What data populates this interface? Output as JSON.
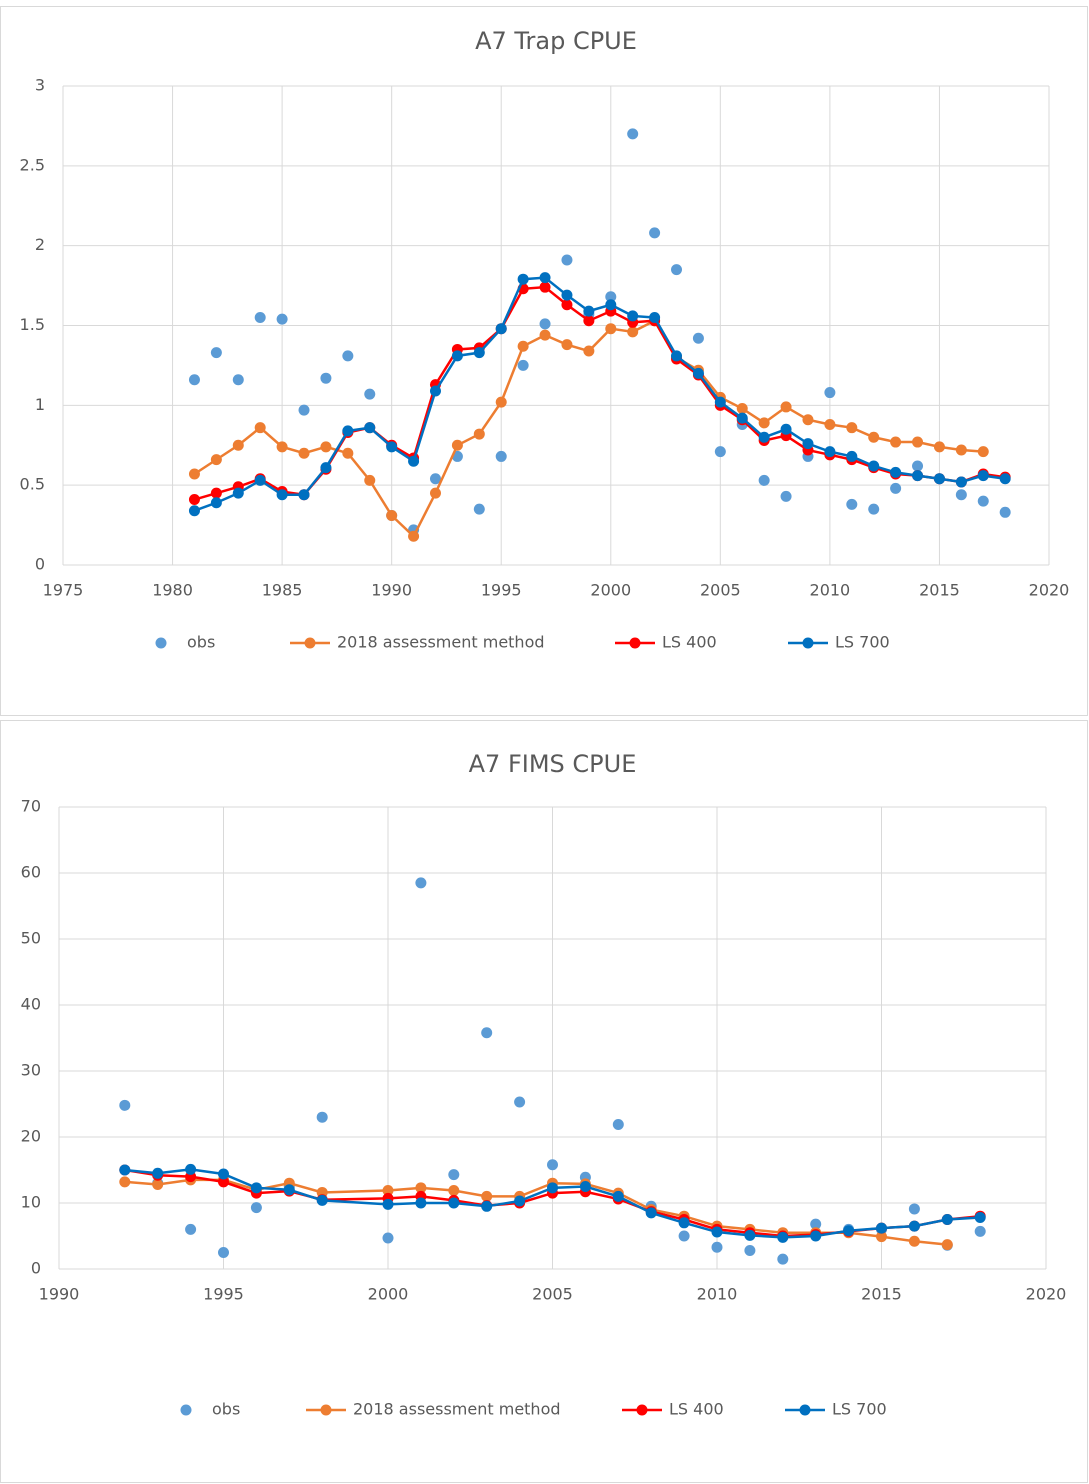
{
  "chart_data": [
    {
      "type": "line",
      "title": "A7 Trap CPUE",
      "xlim": [
        1975,
        2020
      ],
      "xticks": [
        1975,
        1980,
        1985,
        1990,
        1995,
        2000,
        2005,
        2010,
        2015,
        2020
      ],
      "ylim": [
        0,
        3
      ],
      "yticks": [
        0,
        0.5,
        1,
        1.5,
        2,
        2.5,
        3
      ],
      "grid": true,
      "legend": "bottom",
      "series": [
        {
          "name": "obs",
          "color": "#5b9bd5",
          "line": false,
          "x": [
            1981,
            1982,
            1983,
            1984,
            1985,
            1986,
            1987,
            1988,
            1989,
            1990,
            1991,
            1992,
            1993,
            1994,
            1995,
            1996,
            1997,
            1998,
            1999,
            2000,
            2001,
            2002,
            2003,
            2004,
            2005,
            2006,
            2007,
            2008,
            2009,
            2010,
            2011,
            2012,
            2013,
            2014,
            2015,
            2016,
            2017,
            2018
          ],
          "values": [
            1.16,
            1.33,
            1.16,
            1.55,
            1.54,
            0.97,
            1.17,
            1.31,
            1.07,
            0.31,
            0.22,
            0.54,
            0.68,
            0.35,
            0.68,
            1.25,
            1.51,
            1.91,
            1.57,
            1.68,
            2.7,
            2.08,
            1.85,
            1.42,
            0.71,
            0.88,
            0.53,
            0.43,
            0.68,
            1.08,
            0.38,
            0.35,
            0.48,
            0.62,
            0.54,
            0.44,
            0.4,
            0.33
          ]
        },
        {
          "name": "2018 assessment method",
          "color": "#ed7d31",
          "line": true,
          "x": [
            1981,
            1982,
            1983,
            1984,
            1985,
            1986,
            1987,
            1988,
            1989,
            1990,
            1991,
            1992,
            1993,
            1994,
            1995,
            1996,
            1997,
            1998,
            1999,
            2000,
            2001,
            2002,
            2003,
            2004,
            2005,
            2006,
            2007,
            2008,
            2009,
            2010,
            2011,
            2012,
            2013,
            2014,
            2015,
            2016,
            2017
          ],
          "values": [
            0.57,
            0.66,
            0.75,
            0.86,
            0.74,
            0.7,
            0.74,
            0.7,
            0.53,
            0.31,
            0.18,
            0.45,
            0.75,
            0.82,
            1.02,
            1.37,
            1.44,
            1.38,
            1.34,
            1.48,
            1.46,
            1.53,
            1.3,
            1.22,
            1.05,
            0.98,
            0.89,
            0.99,
            0.91,
            0.88,
            0.86,
            0.8,
            0.77,
            0.77,
            0.74,
            0.72,
            0.71
          ]
        },
        {
          "name": "LS 400",
          "color": "#ff0000",
          "line": true,
          "x": [
            1981,
            1982,
            1983,
            1984,
            1985,
            1986,
            1987,
            1988,
            1989,
            1990,
            1991,
            1992,
            1993,
            1994,
            1995,
            1996,
            1997,
            1998,
            1999,
            2000,
            2001,
            2002,
            2003,
            2004,
            2005,
            2006,
            2007,
            2008,
            2009,
            2010,
            2011,
            2012,
            2013,
            2014,
            2015,
            2016,
            2017,
            2018
          ],
          "values": [
            0.41,
            0.45,
            0.49,
            0.54,
            0.46,
            0.44,
            0.6,
            0.83,
            0.86,
            0.75,
            0.67,
            1.13,
            1.35,
            1.36,
            1.48,
            1.73,
            1.74,
            1.63,
            1.53,
            1.59,
            1.52,
            1.53,
            1.29,
            1.19,
            1.0,
            0.91,
            0.78,
            0.81,
            0.72,
            0.69,
            0.66,
            0.61,
            0.57,
            0.56,
            0.54,
            0.52,
            0.57,
            0.55
          ]
        },
        {
          "name": "LS 700",
          "color": "#0070c0",
          "line": true,
          "x": [
            1981,
            1982,
            1983,
            1984,
            1985,
            1986,
            1987,
            1988,
            1989,
            1990,
            1991,
            1992,
            1993,
            1994,
            1995,
            1996,
            1997,
            1998,
            1999,
            2000,
            2001,
            2002,
            2003,
            2004,
            2005,
            2006,
            2007,
            2008,
            2009,
            2010,
            2011,
            2012,
            2013,
            2014,
            2015,
            2016,
            2017,
            2018
          ],
          "values": [
            0.34,
            0.39,
            0.45,
            0.53,
            0.44,
            0.44,
            0.61,
            0.84,
            0.86,
            0.74,
            0.65,
            1.09,
            1.31,
            1.33,
            1.48,
            1.79,
            1.8,
            1.69,
            1.59,
            1.63,
            1.56,
            1.55,
            1.31,
            1.2,
            1.02,
            0.92,
            0.8,
            0.85,
            0.76,
            0.71,
            0.68,
            0.62,
            0.58,
            0.56,
            0.54,
            0.52,
            0.56,
            0.54
          ]
        }
      ]
    },
    {
      "type": "line",
      "title": "A7 FIMS CPUE",
      "xlim": [
        1990,
        2020
      ],
      "xticks": [
        1990,
        1995,
        2000,
        2005,
        2010,
        2015,
        2020
      ],
      "ylim": [
        0,
        70
      ],
      "yticks": [
        0,
        10,
        20,
        30,
        40,
        50,
        60,
        70
      ],
      "grid": true,
      "legend": "bottom",
      "series": [
        {
          "name": "obs",
          "color": "#5b9bd5",
          "line": false,
          "x": [
            1992,
            1993,
            1994,
            1995,
            1996,
            1997,
            1998,
            2000,
            2001,
            2002,
            2003,
            2004,
            2005,
            2006,
            2007,
            2008,
            2009,
            2010,
            2011,
            2012,
            2013,
            2014,
            2015,
            2016,
            2017,
            2018
          ],
          "values": [
            24.8,
            13.0,
            6.0,
            2.5,
            9.3,
            12.5,
            23.0,
            4.7,
            58.5,
            14.3,
            35.8,
            25.3,
            15.8,
            13.9,
            21.9,
            9.5,
            5.0,
            3.3,
            2.8,
            1.5,
            6.8,
            6.0,
            6.0,
            9.1,
            3.6,
            5.7
          ]
        },
        {
          "name": "2018 assessment method",
          "color": "#ed7d31",
          "line": true,
          "x": [
            1992,
            1993,
            1994,
            1995,
            1996,
            1997,
            1998,
            2000,
            2001,
            2002,
            2003,
            2004,
            2005,
            2006,
            2007,
            2008,
            2009,
            2010,
            2011,
            2012,
            2013,
            2014,
            2015,
            2016,
            2017
          ],
          "values": [
            13.2,
            12.8,
            13.5,
            13.5,
            12.0,
            13.0,
            11.6,
            11.9,
            12.3,
            11.9,
            11.0,
            11.0,
            13.0,
            12.9,
            11.5,
            9.0,
            8.0,
            6.5,
            6.0,
            5.5,
            5.5,
            5.5,
            4.9,
            4.2,
            3.7
          ]
        },
        {
          "name": "LS 400",
          "color": "#ff0000",
          "line": true,
          "x": [
            1992,
            1993,
            1994,
            1995,
            1996,
            1997,
            1998,
            2000,
            2001,
            2002,
            2003,
            2004,
            2005,
            2006,
            2007,
            2008,
            2009,
            2010,
            2011,
            2012,
            2013,
            2014,
            2015,
            2016,
            2017,
            2018
          ],
          "values": [
            15.0,
            14.2,
            14.0,
            13.2,
            11.5,
            11.8,
            10.5,
            10.7,
            11.0,
            10.4,
            9.6,
            10.0,
            11.5,
            11.7,
            10.6,
            8.7,
            7.5,
            6.0,
            5.5,
            5.0,
            5.2,
            5.7,
            6.2,
            6.5,
            7.5,
            8.0
          ]
        },
        {
          "name": "LS 700",
          "color": "#0070c0",
          "line": true,
          "x": [
            1992,
            1993,
            1994,
            1995,
            1996,
            1997,
            1998,
            2000,
            2001,
            2002,
            2003,
            2004,
            2005,
            2006,
            2007,
            2008,
            2009,
            2010,
            2011,
            2012,
            2013,
            2014,
            2015,
            2016,
            2017,
            2018
          ],
          "values": [
            15.0,
            14.5,
            15.1,
            14.4,
            12.3,
            12.0,
            10.4,
            9.8,
            10.0,
            10.0,
            9.5,
            10.3,
            12.3,
            12.5,
            11.0,
            8.5,
            7.0,
            5.6,
            5.1,
            4.8,
            5.0,
            5.8,
            6.2,
            6.5,
            7.5,
            7.8
          ]
        }
      ]
    }
  ]
}
